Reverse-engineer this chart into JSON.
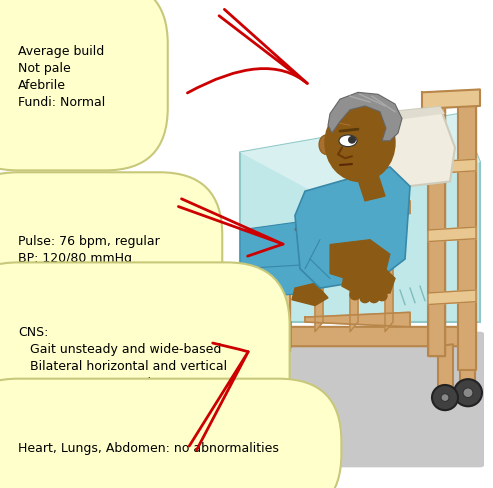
{
  "bg_color": "#ffffff",
  "box_color": "#ffffcc",
  "box_edge_color": "#c8c87a",
  "arrow_color": "#cc0000",
  "wood_color": "#D4A870",
  "wood_dark": "#B8864A",
  "wood_light": "#E8C890",
  "sheet_color": "#C0E8E8",
  "sheet_dark": "#90C8C8",
  "pillow_color": "#F0EDE0",
  "pillow_shadow": "#D8D4C0",
  "gown_color": "#50A8C8",
  "gown_dark": "#3888A8",
  "skin_color": "#8B5A14",
  "skin_light": "#A87030",
  "hair_color": "#909090",
  "shadow_color": "#C8C8C8",
  "wheel_color": "#404040",
  "box1_text": "Average build\nNot pale\nAfebrile\nFundi: Normal",
  "box2_text": "Pulse: 76 bpm, regular\nBP: 120/80 mmHg",
  "box3_text": "CNS:\n   Gait unsteady and wide-based\n   Bilateral horizontal and vertical\n      nystagmus noted\n   Mild dysarthria noted\n   No other focal signs",
  "box4_text": "Heart, Lungs, Abdomen: no abnormalities",
  "font_size": 9.0
}
